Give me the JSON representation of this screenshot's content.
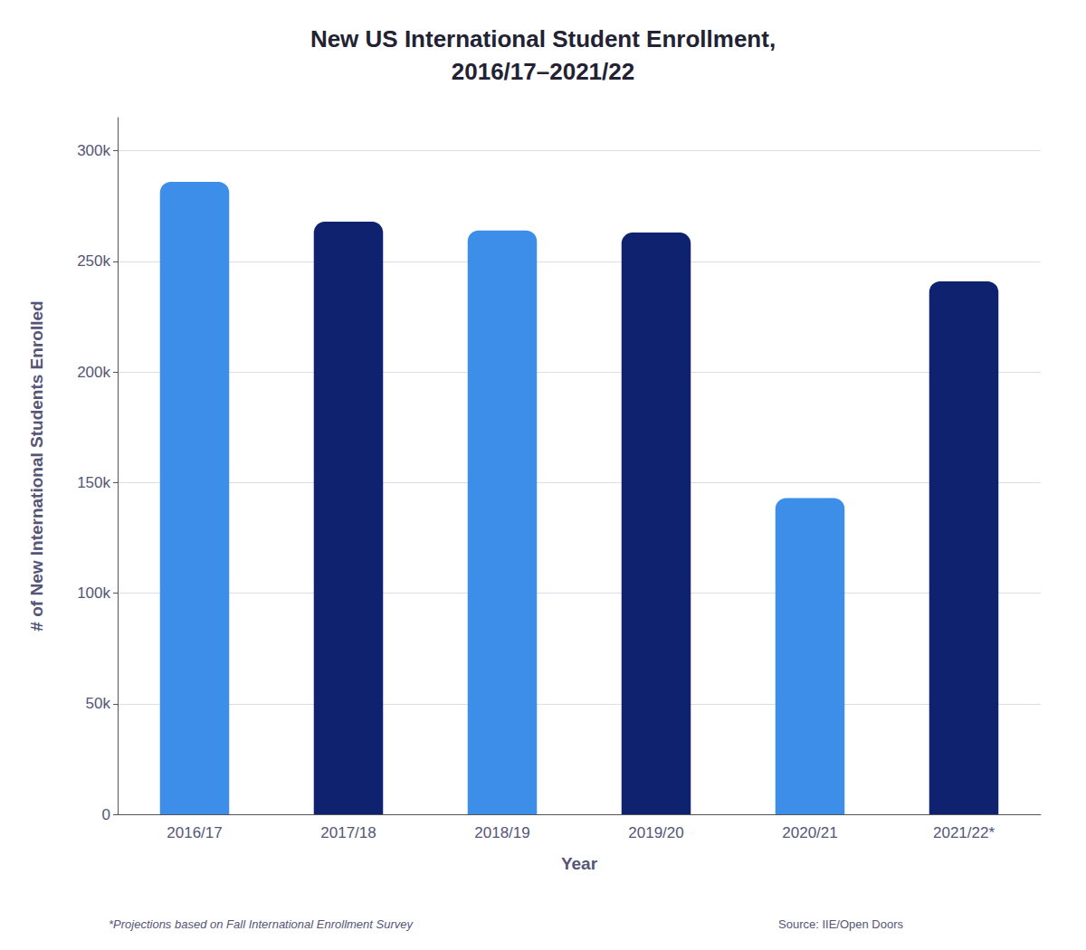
{
  "chart_data": {
    "type": "bar",
    "title": "New US International Student Enrollment,\n2016/17–2021/22",
    "categories": [
      "2016/17",
      "2017/18",
      "2018/19",
      "2019/20",
      "2020/21",
      "2021/22*"
    ],
    "values": [
      286000,
      268000,
      264000,
      263000,
      143000,
      241000
    ],
    "colors": [
      "#3D8EE8",
      "#0E2270",
      "#3D8EE8",
      "#0E2270",
      "#3D8EE8",
      "#0E2270"
    ],
    "xlabel": "Year",
    "ylabel": "# of New International Students Enrolled",
    "ylim": [
      0,
      315000
    ],
    "yticks": [
      0,
      {
        "value": 50000,
        "label": "50k"
      },
      {
        "value": 100000,
        "label": "100k"
      },
      {
        "value": 150000,
        "label": "150k"
      },
      {
        "value": 200000,
        "label": "200k"
      },
      {
        "value": 250000,
        "label": "250k"
      },
      {
        "value": 300000,
        "label": "300k"
      }
    ],
    "grid": true,
    "annotations": [
      "*Projections based on Fall International Enrollment Survey",
      "Source: IIE/Open Doors"
    ]
  }
}
